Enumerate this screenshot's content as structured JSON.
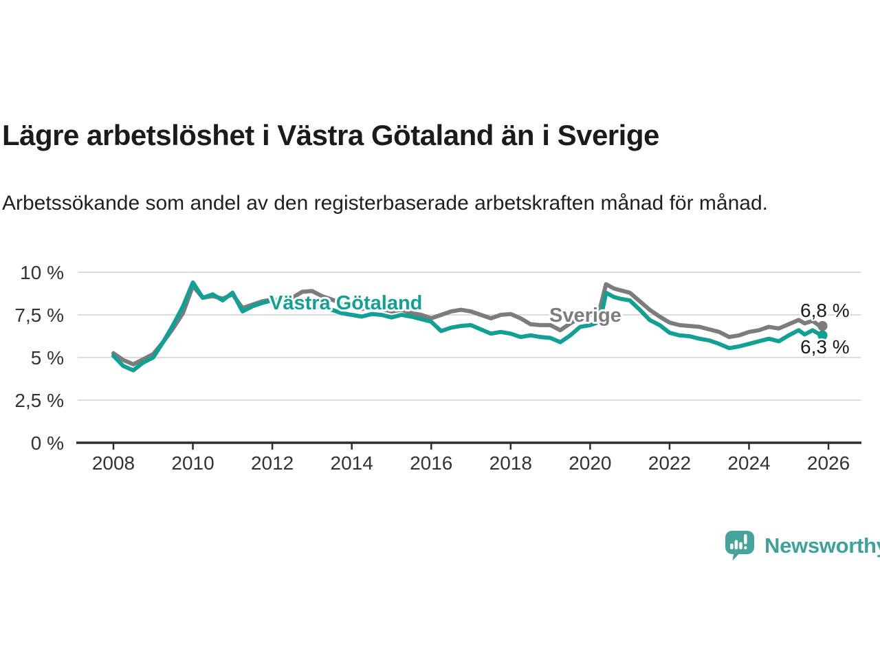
{
  "page": {
    "title": "Lägre arbetslöshet i Västra Götaland än i Sverige",
    "subtitle": "Arbetssökande som andel av den registerbaserade arbetskraften månad för månad.",
    "background_color": "#ffffff"
  },
  "branding": {
    "logo_text": "Newsworthy",
    "logo_color": "#3fa29a"
  },
  "chart_data": {
    "type": "line",
    "title": "Lägre arbetslöshet i Västra Götaland än i Sverige",
    "xlabel": "",
    "ylabel": "",
    "grid": true,
    "legend_position": "inline-labels",
    "xlim": [
      2007.1,
      2026.8
    ],
    "ylim": [
      0,
      10.4
    ],
    "style": {
      "grid_color": "#dcdcdc",
      "axis_color": "#2d2d2d",
      "tick_color": "#333333",
      "end_label_color": "#1a1a1a"
    },
    "x_ticks": [
      2008,
      2010,
      2012,
      2014,
      2016,
      2018,
      2020,
      2022,
      2024,
      2026
    ],
    "y_ticks": [
      {
        "value": 0,
        "label": "0 %"
      },
      {
        "value": 2.5,
        "label": "2,5 %"
      },
      {
        "value": 5,
        "label": "5 %"
      },
      {
        "value": 7.5,
        "label": "7,5 %"
      },
      {
        "value": 10,
        "label": "10 %"
      }
    ],
    "x": [
      2008.0,
      2008.25,
      2008.5,
      2008.75,
      2009.0,
      2009.25,
      2009.5,
      2009.75,
      2010.0,
      2010.25,
      2010.5,
      2010.75,
      2011.0,
      2011.25,
      2011.5,
      2011.75,
      2012.0,
      2012.25,
      2012.5,
      2012.75,
      2013.0,
      2013.25,
      2013.5,
      2013.75,
      2014.0,
      2014.25,
      2014.5,
      2014.75,
      2015.0,
      2015.25,
      2015.5,
      2015.75,
      2016.0,
      2016.25,
      2016.5,
      2016.75,
      2017.0,
      2017.25,
      2017.5,
      2017.75,
      2018.0,
      2018.25,
      2018.5,
      2018.75,
      2019.0,
      2019.25,
      2019.5,
      2019.75,
      2020.0,
      2020.25,
      2020.4,
      2020.6,
      2020.75,
      2021.0,
      2021.25,
      2021.5,
      2021.75,
      2022.0,
      2022.25,
      2022.5,
      2022.75,
      2023.0,
      2023.25,
      2023.5,
      2023.75,
      2024.0,
      2024.25,
      2024.5,
      2024.75,
      2025.0,
      2025.25,
      2025.4,
      2025.6,
      2025.75,
      2025.85
    ],
    "series": [
      {
        "id": "sverige",
        "name": "Sverige",
        "color": "#7c7c7c",
        "end_label": "6,8 %",
        "label_pos": {
          "x": 799,
          "y": 468
        },
        "end_label_y": 461,
        "values": [
          5.25,
          4.85,
          4.6,
          4.9,
          5.2,
          5.9,
          6.7,
          7.6,
          9.2,
          8.5,
          8.6,
          8.45,
          8.7,
          7.9,
          8.1,
          8.3,
          8.4,
          8.3,
          8.5,
          8.85,
          8.9,
          8.6,
          8.4,
          8.15,
          8.0,
          7.85,
          7.95,
          7.85,
          7.7,
          7.8,
          7.6,
          7.5,
          7.3,
          7.5,
          7.7,
          7.8,
          7.7,
          7.5,
          7.3,
          7.5,
          7.55,
          7.3,
          6.95,
          6.9,
          6.9,
          6.6,
          7.0,
          7.35,
          7.5,
          7.9,
          9.3,
          9.05,
          8.95,
          8.8,
          8.3,
          7.8,
          7.4,
          7.05,
          6.9,
          6.85,
          6.8,
          6.65,
          6.5,
          6.2,
          6.3,
          6.5,
          6.6,
          6.8,
          6.7,
          6.95,
          7.2,
          7.0,
          7.15,
          6.9,
          6.85
        ]
      },
      {
        "id": "vastra-gotaland",
        "name": "Västra Götaland",
        "color": "#12a095",
        "end_label": "6,3 %",
        "label_pos": {
          "x": 392,
          "y": 450
        },
        "end_label_y": 514,
        "values": [
          5.1,
          4.5,
          4.25,
          4.7,
          5.0,
          5.9,
          6.9,
          8.0,
          9.4,
          8.5,
          8.7,
          8.35,
          8.8,
          7.7,
          8.0,
          8.2,
          8.35,
          8.2,
          8.3,
          8.1,
          8.15,
          7.9,
          7.8,
          7.6,
          7.5,
          7.4,
          7.55,
          7.5,
          7.35,
          7.5,
          7.4,
          7.25,
          7.1,
          6.55,
          6.75,
          6.85,
          6.9,
          6.65,
          6.4,
          6.5,
          6.4,
          6.2,
          6.3,
          6.2,
          6.15,
          5.9,
          6.3,
          6.8,
          6.9,
          7.1,
          8.8,
          8.55,
          8.45,
          8.35,
          7.8,
          7.2,
          6.9,
          6.45,
          6.3,
          6.25,
          6.1,
          6.0,
          5.8,
          5.55,
          5.65,
          5.8,
          5.95,
          6.1,
          5.95,
          6.3,
          6.6,
          6.35,
          6.6,
          6.4,
          6.3
        ]
      }
    ]
  }
}
